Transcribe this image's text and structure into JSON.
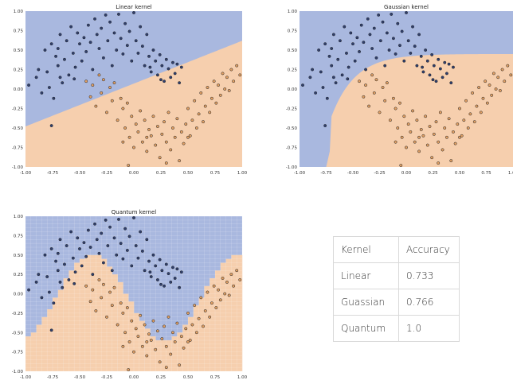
{
  "colors": {
    "class0_region": "#a9b8df",
    "class1_region": "#f6cfae",
    "class0_point": "#2f3f6f",
    "class1_point": "#e2a064",
    "point_edge": "#222222"
  },
  "chart_data": [
    {
      "type": "scatter",
      "title": "Linear kernel",
      "xlim": [
        -1.0,
        1.0
      ],
      "ylim": [
        -1.0,
        1.0
      ],
      "xticks": [
        "-1.00",
        "-0.75",
        "-0.50",
        "-0.25",
        "0.00",
        "0.25",
        "0.50",
        "0.75",
        "1.00"
      ],
      "yticks": [
        "-1.00",
        "-0.75",
        "-0.50",
        "-0.25",
        "0.00",
        "0.25",
        "0.50",
        "0.75",
        "1.00"
      ],
      "boundary": "linear",
      "grid": false
    },
    {
      "type": "scatter",
      "title": "Gaussian kernel",
      "xlim": [
        -1.0,
        1.0
      ],
      "ylim": [
        -1.0,
        1.0
      ],
      "xticks": [
        "-1.00",
        "-0.75",
        "-0.50",
        "-0.25",
        "0.00",
        "0.25",
        "0.50",
        "0.75",
        "1.00"
      ],
      "yticks": [
        "-1.00",
        "-0.75",
        "-0.50",
        "-0.25",
        "0.00",
        "0.25",
        "0.50",
        "0.75",
        "1.00"
      ],
      "boundary": "curved",
      "grid": false
    },
    {
      "type": "scatter",
      "title": "Quantum kernel",
      "xlim": [
        -1.0,
        1.0
      ],
      "ylim": [
        -1.0,
        1.0
      ],
      "xticks": [
        "-1.00",
        "-0.75",
        "-0.50",
        "-0.25",
        "0.00",
        "0.25",
        "0.50",
        "0.75",
        "1.00"
      ],
      "yticks": [
        "-1.00",
        "-0.75",
        "-0.50",
        "-0.25",
        "0.00",
        "0.25",
        "0.50",
        "0.75",
        "1.00"
      ],
      "boundary": "pixelated-wave",
      "grid": true
    }
  ],
  "points": {
    "class0": [
      [
        -0.97,
        0.05
      ],
      [
        -0.9,
        0.15
      ],
      [
        -0.88,
        0.25
      ],
      [
        -0.85,
        -0.05
      ],
      [
        -0.82,
        0.5
      ],
      [
        -0.8,
        0.22
      ],
      [
        -0.78,
        0.02
      ],
      [
        -0.76,
        0.58
      ],
      [
        -0.74,
        -0.12
      ],
      [
        -0.72,
        0.42
      ],
      [
        -0.7,
        0.3
      ],
      [
        -0.7,
        0.52
      ],
      [
        -0.68,
        0.7
      ],
      [
        -0.66,
        0.08
      ],
      [
        -0.64,
        0.38
      ],
      [
        -0.62,
        0.62
      ],
      [
        -0.6,
        0.18
      ],
      [
        -0.58,
        0.8
      ],
      [
        -0.56,
        0.46
      ],
      [
        -0.54,
        0.28
      ],
      [
        -0.52,
        0.72
      ],
      [
        -0.5,
        0.58
      ],
      [
        -0.48,
        0.36
      ],
      [
        -0.46,
        0.66
      ],
      [
        -0.44,
        0.48
      ],
      [
        -0.42,
        0.82
      ],
      [
        -0.4,
        0.6
      ],
      [
        -0.38,
        0.25
      ],
      [
        -0.36,
        0.9
      ],
      [
        -0.34,
        0.7
      ],
      [
        -0.32,
        0.52
      ],
      [
        -0.3,
        0.78
      ],
      [
        -0.28,
        0.4
      ],
      [
        -0.26,
        0.95
      ],
      [
        -0.24,
        0.62
      ],
      [
        -0.22,
        0.86
      ],
      [
        -0.2,
        0.3
      ],
      [
        -0.18,
        0.72
      ],
      [
        -0.16,
        0.5
      ],
      [
        -0.14,
        0.96
      ],
      [
        -0.12,
        0.65
      ],
      [
        -0.1,
        0.45
      ],
      [
        -0.08,
        0.84
      ],
      [
        -0.06,
        0.56
      ],
      [
        -0.04,
        0.74
      ],
      [
        -0.02,
        0.36
      ],
      [
        0.0,
        0.98
      ],
      [
        0.02,
        0.62
      ],
      [
        0.04,
        0.46
      ],
      [
        0.06,
        0.8
      ],
      [
        0.08,
        0.55
      ],
      [
        0.1,
        0.3
      ],
      [
        0.12,
        0.7
      ],
      [
        0.14,
        0.42
      ],
      [
        0.16,
        0.22
      ],
      [
        0.18,
        0.5
      ],
      [
        0.2,
        0.36
      ],
      [
        0.22,
        0.18
      ],
      [
        0.24,
        0.44
      ],
      [
        0.26,
        0.3
      ],
      [
        0.28,
        0.1
      ],
      [
        0.3,
        0.38
      ],
      [
        0.32,
        0.26
      ],
      [
        0.34,
        0.15
      ],
      [
        0.36,
        0.34
      ],
      [
        0.38,
        0.2
      ],
      [
        0.4,
        0.32
      ],
      [
        0.42,
        0.08
      ],
      [
        0.44,
        0.28
      ],
      [
        -0.68,
        0.15
      ],
      [
        -0.76,
        -0.47
      ],
      [
        -0.55,
        0.13
      ],
      [
        0.15,
        0.28
      ],
      [
        0.25,
        0.12
      ]
    ],
    "class1": [
      [
        -0.44,
        0.1
      ],
      [
        -0.4,
        -0.1
      ],
      [
        -0.38,
        0.05
      ],
      [
        -0.35,
        -0.22
      ],
      [
        -0.32,
        0.18
      ],
      [
        -0.3,
        -0.05
      ],
      [
        -0.28,
        0.12
      ],
      [
        -0.25,
        -0.3
      ],
      [
        -0.22,
        0.02
      ],
      [
        -0.2,
        -0.15
      ],
      [
        -0.18,
        0.08
      ],
      [
        -0.15,
        -0.4
      ],
      [
        -0.12,
        -0.12
      ],
      [
        -0.1,
        -0.25
      ],
      [
        -0.08,
        -0.5
      ],
      [
        -0.06,
        -0.18
      ],
      [
        -0.04,
        -0.62
      ],
      [
        -0.02,
        -0.35
      ],
      [
        0.0,
        -0.75
      ],
      [
        0.02,
        -0.45
      ],
      [
        0.04,
        -0.55
      ],
      [
        0.06,
        -0.28
      ],
      [
        0.08,
        -0.68
      ],
      [
        0.1,
        -0.4
      ],
      [
        0.12,
        -0.8
      ],
      [
        0.14,
        -0.52
      ],
      [
        0.16,
        -0.6
      ],
      [
        0.18,
        -0.35
      ],
      [
        0.2,
        -0.72
      ],
      [
        0.22,
        -0.48
      ],
      [
        0.24,
        -0.88
      ],
      [
        0.26,
        -0.58
      ],
      [
        0.28,
        -0.42
      ],
      [
        0.3,
        -0.68
      ],
      [
        0.32,
        -0.3
      ],
      [
        0.34,
        -0.78
      ],
      [
        0.36,
        -0.5
      ],
      [
        0.38,
        -0.62
      ],
      [
        0.4,
        -0.38
      ],
      [
        0.42,
        -0.92
      ],
      [
        0.44,
        -0.55
      ],
      [
        0.46,
        -0.7
      ],
      [
        0.48,
        -0.45
      ],
      [
        0.5,
        -0.25
      ],
      [
        0.52,
        -0.6
      ],
      [
        0.54,
        -0.4
      ],
      [
        0.56,
        -0.15
      ],
      [
        0.58,
        -0.5
      ],
      [
        0.6,
        -0.32
      ],
      [
        0.62,
        -0.05
      ],
      [
        0.64,
        -0.42
      ],
      [
        0.66,
        -0.22
      ],
      [
        0.68,
        0.02
      ],
      [
        0.7,
        -0.3
      ],
      [
        0.72,
        -0.12
      ],
      [
        0.74,
        0.1
      ],
      [
        0.76,
        -0.18
      ],
      [
        0.78,
        0.05
      ],
      [
        0.8,
        -0.08
      ],
      [
        0.82,
        0.2
      ],
      [
        0.84,
        0.0
      ],
      [
        0.86,
        0.15
      ],
      [
        0.88,
        -0.02
      ],
      [
        0.9,
        0.25
      ],
      [
        0.92,
        0.1
      ],
      [
        0.95,
        0.3
      ],
      [
        0.98,
        0.18
      ],
      [
        -0.05,
        -0.98
      ],
      [
        0.3,
        -0.95
      ],
      [
        0.12,
        -0.62
      ],
      [
        0.5,
        -0.62
      ],
      [
        -0.1,
        -0.68
      ]
    ]
  },
  "table": {
    "headers": [
      "Kernel",
      "Accuracy"
    ],
    "rows": [
      [
        "Linear",
        "0.733"
      ],
      [
        "Guassian",
        "0.766"
      ],
      [
        "Quantum",
        "1.0"
      ]
    ]
  }
}
